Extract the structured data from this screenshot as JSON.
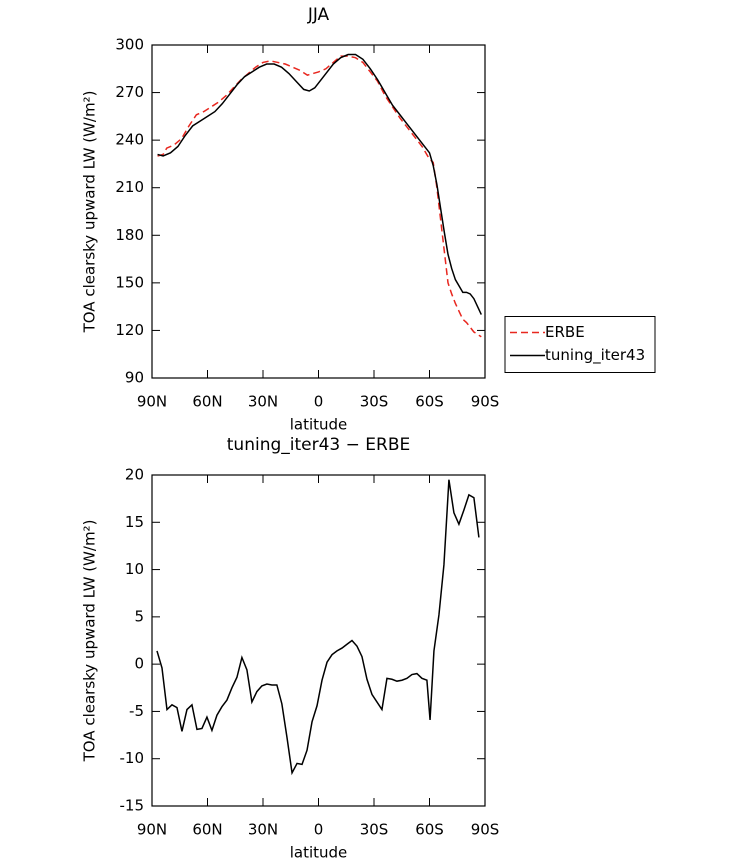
{
  "chart_data": [
    {
      "type": "line",
      "title": "JJA",
      "xlabel": "latitude",
      "ylabel": "TOA clearsky upward LW (W/m²)",
      "xlim": [
        90,
        -90
      ],
      "xticks": [
        {
          "value": 90,
          "label": "90N"
        },
        {
          "value": 60,
          "label": "60N"
        },
        {
          "value": 30,
          "label": "30N"
        },
        0,
        {
          "value": -30,
          "label": "30S"
        },
        {
          "value": -60,
          "label": "60S"
        },
        {
          "value": -90,
          "label": "90S"
        }
      ],
      "ylim": [
        90,
        300
      ],
      "yticks": [
        90,
        120,
        150,
        180,
        210,
        240,
        270,
        300
      ],
      "legend": "right",
      "series": [
        {
          "name": "ERBE",
          "color": "#e8271f",
          "dash": true,
          "x": [
            87,
            84,
            82,
            78,
            74,
            70,
            66,
            62,
            58,
            54,
            50,
            46,
            42,
            38,
            34,
            30,
            26,
            22,
            18,
            14,
            10,
            6,
            3,
            0,
            -4,
            -8,
            -12,
            -16,
            -20,
            -24,
            -28,
            -32,
            -36,
            -40,
            -44,
            -48,
            -52,
            -56,
            -60,
            -62,
            -64,
            -66,
            -68,
            -70,
            -72,
            -74,
            -76,
            -78,
            -80,
            -82,
            -84,
            -88
          ],
          "values": [
            230,
            231,
            235,
            237,
            241,
            249,
            256,
            258,
            261,
            264,
            268,
            273,
            278,
            282,
            286,
            289,
            290,
            289,
            288,
            286,
            284,
            281,
            282,
            283,
            285,
            289,
            293,
            293,
            292,
            289,
            283,
            277,
            268,
            261,
            254,
            248,
            242,
            236,
            228,
            226,
            210,
            190,
            170,
            150,
            143,
            137,
            132,
            127,
            125,
            122,
            119,
            116
          ]
        },
        {
          "name": "tuning_iter43",
          "color": "#000000",
          "dash": false,
          "x": [
            87,
            84,
            80,
            76,
            72,
            68,
            64,
            60,
            56,
            52,
            48,
            44,
            40,
            36,
            32,
            28,
            24,
            20,
            16,
            12,
            8,
            5,
            2,
            0,
            -4,
            -8,
            -12,
            -16,
            -20,
            -24,
            -28,
            -32,
            -36,
            -40,
            -44,
            -48,
            -52,
            -56,
            -60,
            -62,
            -64,
            -66,
            -68,
            -70,
            -72,
            -74,
            -76,
            -78,
            -80,
            -82,
            -84,
            -88
          ],
          "values": [
            231,
            230,
            232,
            236,
            243,
            249,
            252,
            255,
            258,
            263,
            269,
            275,
            280,
            283,
            286,
            288,
            288,
            286,
            282,
            277,
            272,
            271,
            273,
            276,
            282,
            288,
            292,
            294,
            294,
            291,
            285,
            278,
            270,
            262,
            256,
            250,
            244,
            238,
            232,
            224,
            212,
            197,
            182,
            168,
            159,
            152,
            148,
            144,
            144,
            143,
            140,
            130
          ]
        }
      ]
    },
    {
      "type": "line",
      "title": "tuning_iter43 − ERBE",
      "xlabel": "latitude",
      "ylabel": "TOA clearsky upward LW (W/m²)",
      "xlim": [
        90,
        -90
      ],
      "xticks": [
        {
          "value": 90,
          "label": "90N"
        },
        {
          "value": 60,
          "label": "60N"
        },
        {
          "value": 30,
          "label": "30N"
        },
        0,
        {
          "value": -30,
          "label": "30S"
        },
        {
          "value": -60,
          "label": "60S"
        },
        {
          "value": -90,
          "label": "90S"
        }
      ],
      "ylim": [
        -15,
        20
      ],
      "yticks": [
        -15,
        -10,
        -5,
        0,
        5,
        10,
        15,
        20
      ],
      "series": [
        {
          "color": "#000000",
          "dash": false,
          "x": [
            87.3,
            84.6,
            81.9,
            79.2,
            76.5,
            73.8,
            71.1,
            68.4,
            65.7,
            63.0,
            60.3,
            57.6,
            54.9,
            52.2,
            49.5,
            46.8,
            44.1,
            41.4,
            38.7,
            36.0,
            33.3,
            30.6,
            27.9,
            25.2,
            22.5,
            19.8,
            17.0,
            14.3,
            11.6,
            8.9,
            6.2,
            3.5,
            0.8,
            -1.9,
            -4.6,
            -7.3,
            -10.0,
            -12.7,
            -15.4,
            -18.1,
            -20.8,
            -23.5,
            -26.2,
            -28.9,
            -34.3,
            -37.0,
            -39.7,
            -42.4,
            -45.1,
            -47.8,
            -50.5,
            -53.2,
            -55.9,
            -58.6,
            -60.3,
            -62.4,
            -65.1,
            -67.8,
            -70.5,
            -73.2,
            -75.9,
            -78.6,
            -81.3,
            -84.0,
            -86.7
          ],
          "values": [
            1.4,
            -0.4,
            -4.8,
            -4.3,
            -4.6,
            -7.1,
            -4.8,
            -4.3,
            -6.9,
            -6.8,
            -5.6,
            -7.0,
            -5.4,
            -4.5,
            -3.8,
            -2.5,
            -1.4,
            0.7,
            -0.6,
            -4.0,
            -2.9,
            -2.3,
            -2.1,
            -2.2,
            -2.2,
            -4.2,
            -7.8,
            -11.5,
            -10.5,
            -10.6,
            -9.1,
            -6.1,
            -4.4,
            -1.7,
            0.2,
            1.0,
            1.4,
            1.7,
            2.1,
            2.5,
            1.9,
            0.8,
            -1.6,
            -3.2,
            -4.8,
            -1.5,
            -1.6,
            -1.8,
            -1.7,
            -1.5,
            -1.1,
            -1.0,
            -1.5,
            -1.7,
            -5.9,
            1.4,
            5.2,
            10.5,
            19.5,
            16.0,
            14.8,
            16.3,
            17.9,
            17.6,
            13.4
          ]
        }
      ]
    }
  ]
}
